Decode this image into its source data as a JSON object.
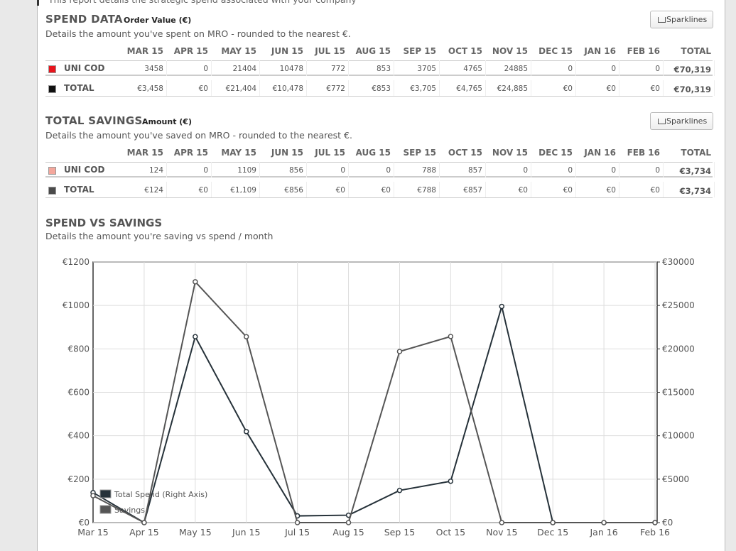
{
  "header_text": "This report details the strategic spend associated with your company",
  "spend_table": {
    "title": "SPEND DATA",
    "subtitle": "Order Value (€)",
    "description": "Details the amount you've spent on MRO - rounded to the nearest €.",
    "button": "Sparklines",
    "columns": [
      "MAR 15",
      "APR 15",
      "MAY 15",
      "JUN 15",
      "JUL 15",
      "AUG 15",
      "SEP 15",
      "OCT 15",
      "NOV 15",
      "DEC 15",
      "JAN 16",
      "FEB 16",
      "TOTAL"
    ],
    "rows": [
      {
        "label": "UNI COD",
        "color": "#e8141c",
        "cells": [
          "3458",
          "0",
          "21404",
          "10478",
          "772",
          "853",
          "3705",
          "4765",
          "24885",
          "0",
          "0",
          "0",
          "€70,319"
        ]
      },
      {
        "label": "TOTAL",
        "color": "#111111",
        "cells": [
          "€3,458",
          "€0",
          "€21,404",
          "€10,478",
          "€772",
          "€853",
          "€3,705",
          "€4,765",
          "€24,885",
          "€0",
          "€0",
          "€0",
          "€70,319"
        ]
      }
    ]
  },
  "savings_table": {
    "title": "TOTAL SAVINGS",
    "subtitle": "Amount (€)",
    "description": "Details the amount you've saved on MRO - rounded to the nearest €.",
    "button": "Sparklines",
    "columns": [
      "MAR 15",
      "APR 15",
      "MAY 15",
      "JUN 15",
      "JUL 15",
      "AUG 15",
      "SEP 15",
      "OCT 15",
      "NOV 15",
      "DEC 15",
      "JAN 16",
      "FEB 16",
      "TOTAL"
    ],
    "rows": [
      {
        "label": "UNI COD",
        "color": "#f4a79c",
        "cells": [
          "124",
          "0",
          "1109",
          "856",
          "0",
          "0",
          "788",
          "857",
          "0",
          "0",
          "0",
          "0",
          "€3,734"
        ]
      },
      {
        "label": "TOTAL",
        "color": "#4a4a4a",
        "cells": [
          "€124",
          "€0",
          "€1,109",
          "€856",
          "€0",
          "€0",
          "€788",
          "€857",
          "€0",
          "€0",
          "€0",
          "€0",
          "€3,734"
        ]
      }
    ]
  },
  "chart_data": {
    "type": "line",
    "title": "SPEND VS SAVINGS",
    "subtitle": "Details the amount you're saving vs spend / month",
    "categories": [
      "Mar 15",
      "Apr 15",
      "May 15",
      "Jun 15",
      "Jul 15",
      "Aug 15",
      "Sep 15",
      "Oct 15",
      "Nov 15",
      "Dec 15",
      "Jan 16",
      "Feb 16"
    ],
    "series": [
      {
        "name": "Total Spend (Right Axis)",
        "color": "#26323a",
        "axis": "y2",
        "values": [
          3458,
          0,
          21404,
          10478,
          772,
          853,
          3705,
          4765,
          24885,
          0,
          0,
          0
        ]
      },
      {
        "name": "Savings",
        "color": "#555555",
        "values": [
          124,
          0,
          1109,
          856,
          0,
          0,
          788,
          857,
          0,
          0,
          0,
          0
        ]
      }
    ],
    "ylim": [
      0,
      1200
    ],
    "yticks": [
      {
        "value": 0,
        "label": "€0"
      },
      {
        "value": 200,
        "label": "€200"
      },
      {
        "value": 400,
        "label": "€400"
      },
      {
        "value": 600,
        "label": "€600"
      },
      {
        "value": 800,
        "label": "€800"
      },
      {
        "value": 1000,
        "label": "€1000"
      },
      {
        "value": 1200,
        "label": "€1200"
      }
    ],
    "y2lim": [
      0,
      30000
    ],
    "y2ticks": [
      {
        "value": 0,
        "label": "€0"
      },
      {
        "value": 5000,
        "label": "€5000"
      },
      {
        "value": 10000,
        "label": "€10000"
      },
      {
        "value": 15000,
        "label": "€15000"
      },
      {
        "value": 20000,
        "label": "€20000"
      },
      {
        "value": 25000,
        "label": "€25000"
      },
      {
        "value": 30000,
        "label": "€30000"
      }
    ],
    "grid": true,
    "legend": "bottom-left"
  }
}
